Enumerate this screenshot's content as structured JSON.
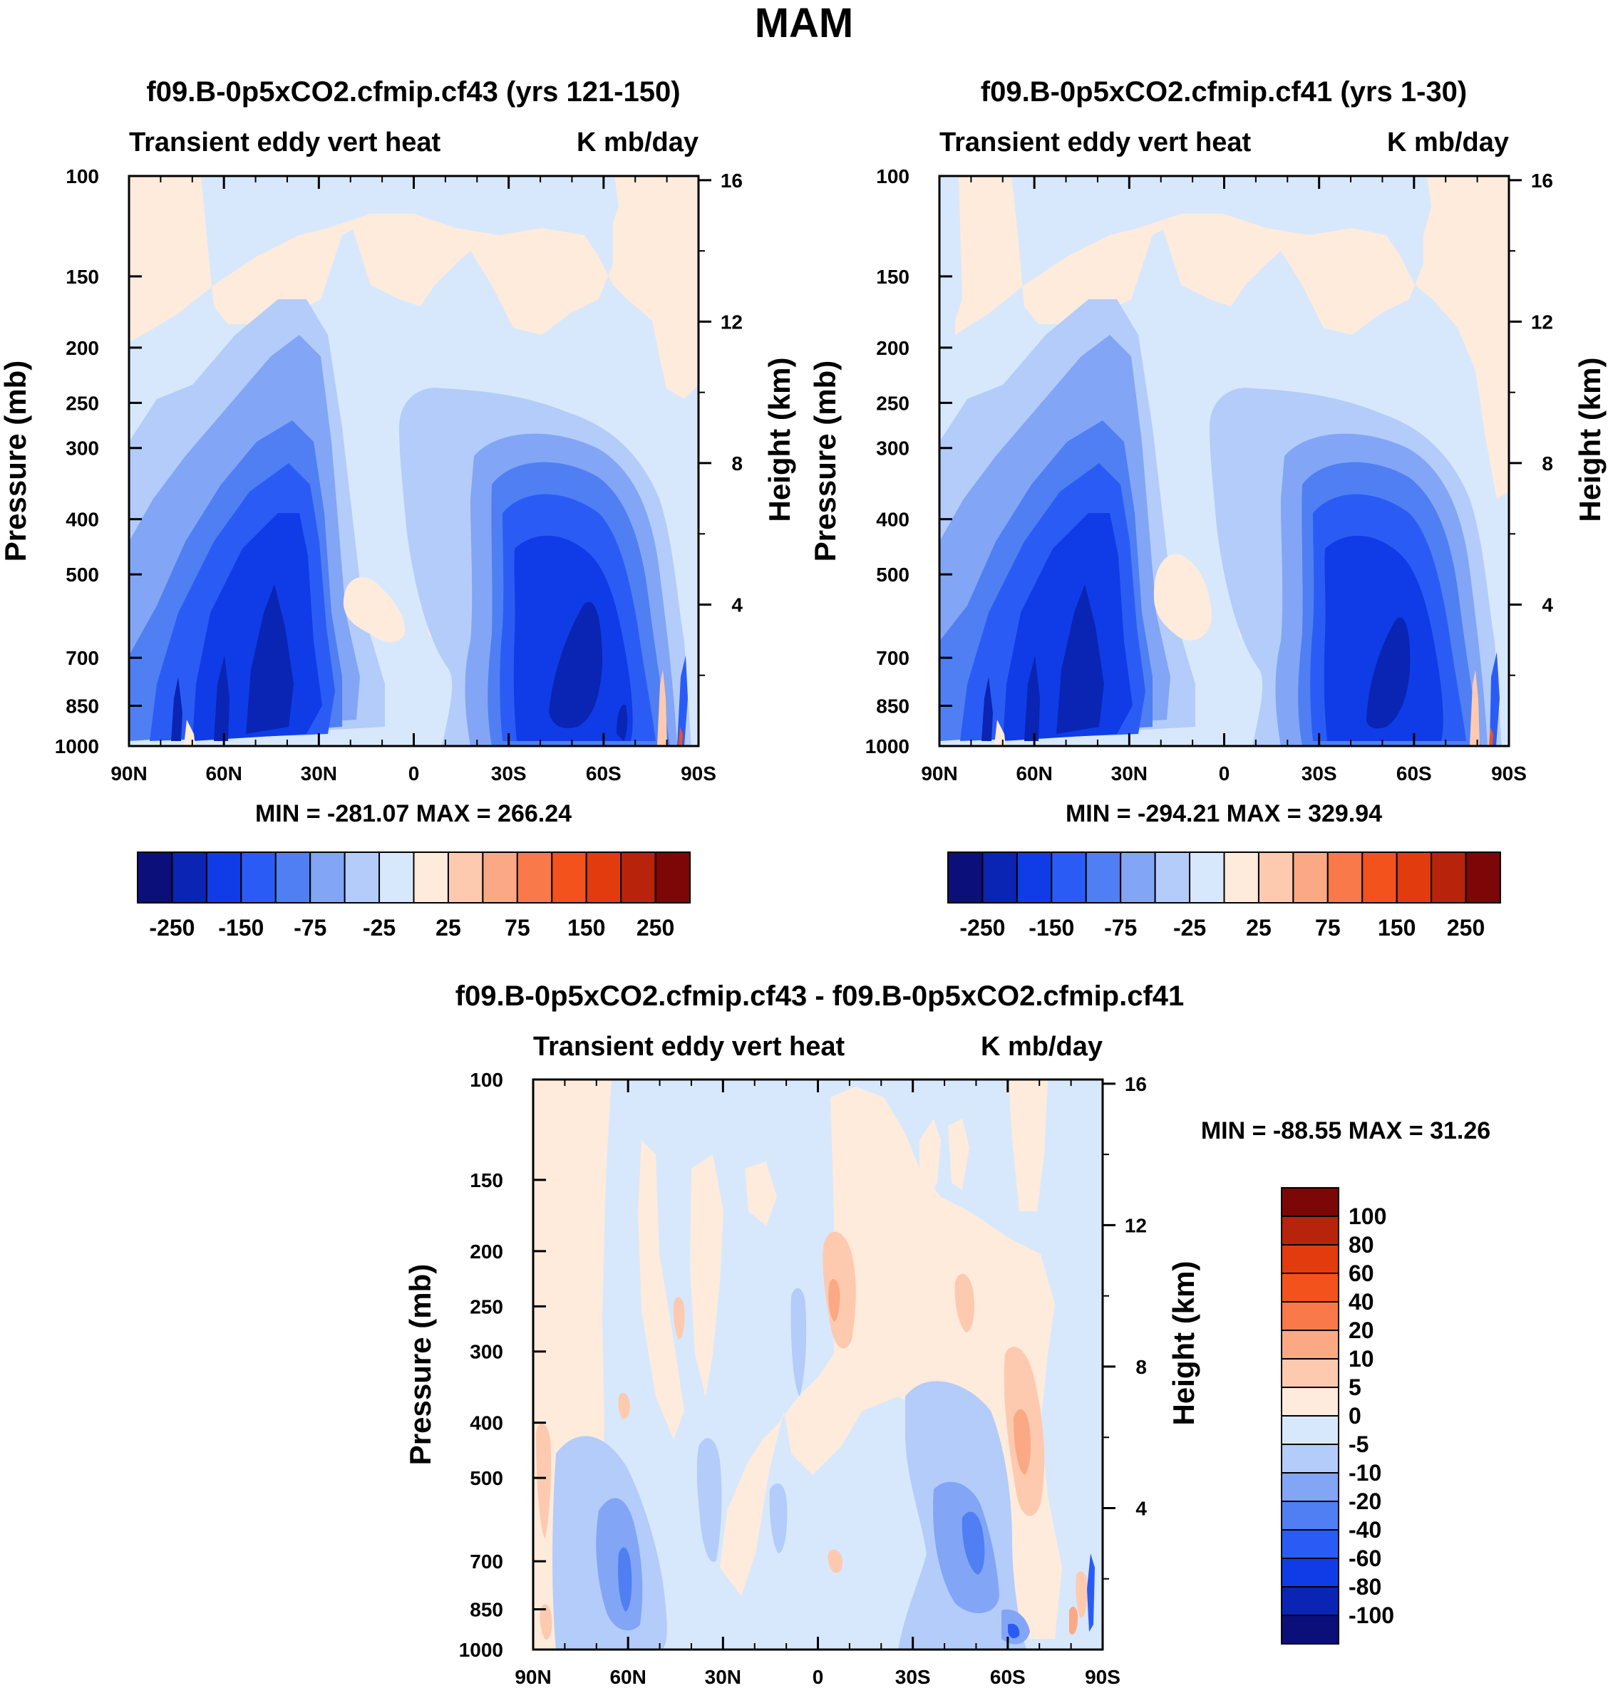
{
  "title": "MAM",
  "chart_data": [
    {
      "type": "heatmap",
      "title": "f09.B-0p5xCO2.cfmip.cf43 (yrs 121-150)",
      "subtitle_left": "Transient eddy vert heat",
      "subtitle_right": "K mb/day",
      "ylabel": "Pressure (mb)",
      "ylabel_right": "Height (km)",
      "x_ticks": [
        "90N",
        "60N",
        "30N",
        "0",
        "30S",
        "60S",
        "90S"
      ],
      "y_ticks": [
        "100",
        "150",
        "200",
        "250",
        "300",
        "400",
        "500",
        "700",
        "850",
        "1000"
      ],
      "y_ticks_right": [
        "16",
        "12",
        "8",
        "4"
      ],
      "stats": "MIN = -281.07  MAX = 266.24",
      "min": -281.07,
      "max": 266.24,
      "colorbar_labels": [
        "-250",
        "-150",
        "-75",
        "-25",
        "25",
        "75",
        "150",
        "250"
      ],
      "colors": [
        "#0a0f7a",
        "#0a24b4",
        "#0f3ce6",
        "#2a5cf5",
        "#4f7ff2",
        "#82a5f6",
        "#b3ccfa",
        "#d7e8fc",
        "#feebdc",
        "#fdcab0",
        "#fba884",
        "#f9794a",
        "#f3521c",
        "#e13b0e",
        "#b8230c",
        "#7d0606"
      ]
    },
    {
      "type": "heatmap",
      "title": "f09.B-0p5xCO2.cfmip.cf41 (yrs 1-30)",
      "subtitle_left": "Transient eddy vert heat",
      "subtitle_right": "K mb/day",
      "ylabel": "Pressure (mb)",
      "ylabel_right": "Height (km)",
      "x_ticks": [
        "90N",
        "60N",
        "30N",
        "0",
        "30S",
        "60S",
        "90S"
      ],
      "y_ticks": [
        "100",
        "150",
        "200",
        "250",
        "300",
        "400",
        "500",
        "700",
        "850",
        "1000"
      ],
      "y_ticks_right": [
        "16",
        "12",
        "8",
        "4"
      ],
      "stats": "MIN = -294.21  MAX = 329.94",
      "min": -294.21,
      "max": 329.94,
      "colorbar_labels": [
        "-250",
        "-150",
        "-75",
        "-25",
        "25",
        "75",
        "150",
        "250"
      ],
      "colors": [
        "#0a0f7a",
        "#0a24b4",
        "#0f3ce6",
        "#2a5cf5",
        "#4f7ff2",
        "#82a5f6",
        "#b3ccfa",
        "#d7e8fc",
        "#feebdc",
        "#fdcab0",
        "#fba884",
        "#f9794a",
        "#f3521c",
        "#e13b0e",
        "#b8230c",
        "#7d0606"
      ]
    },
    {
      "type": "heatmap",
      "title": "f09.B-0p5xCO2.cfmip.cf43 - f09.B-0p5xCO2.cfmip.cf41",
      "subtitle_left": "Transient eddy vert heat",
      "subtitle_right": "K mb/day",
      "ylabel": "Pressure (mb)",
      "ylabel_right": "Height (km)",
      "x_ticks": [
        "90N",
        "60N",
        "30N",
        "0",
        "30S",
        "60S",
        "90S"
      ],
      "y_ticks": [
        "100",
        "150",
        "200",
        "250",
        "300",
        "400",
        "500",
        "700",
        "850",
        "1000"
      ],
      "y_ticks_right": [
        "16",
        "12",
        "8",
        "4"
      ],
      "stats": "MIN = -88.55  MAX =  31.26",
      "min": -88.55,
      "max": 31.26,
      "colorbar_labels": [
        "100",
        "80",
        "60",
        "40",
        "20",
        "10",
        "5",
        "0",
        "-5",
        "-10",
        "-20",
        "-40",
        "-60",
        "-80",
        "-100"
      ],
      "colors": [
        "#7d0606",
        "#b8230c",
        "#e13b0e",
        "#f3521c",
        "#f9794a",
        "#fba884",
        "#fdcab0",
        "#feebdc",
        "#d7e8fc",
        "#b3ccfa",
        "#82a5f6",
        "#4f7ff2",
        "#2a5cf5",
        "#0f3ce6",
        "#0a24b4",
        "#0a0f7a"
      ]
    }
  ]
}
